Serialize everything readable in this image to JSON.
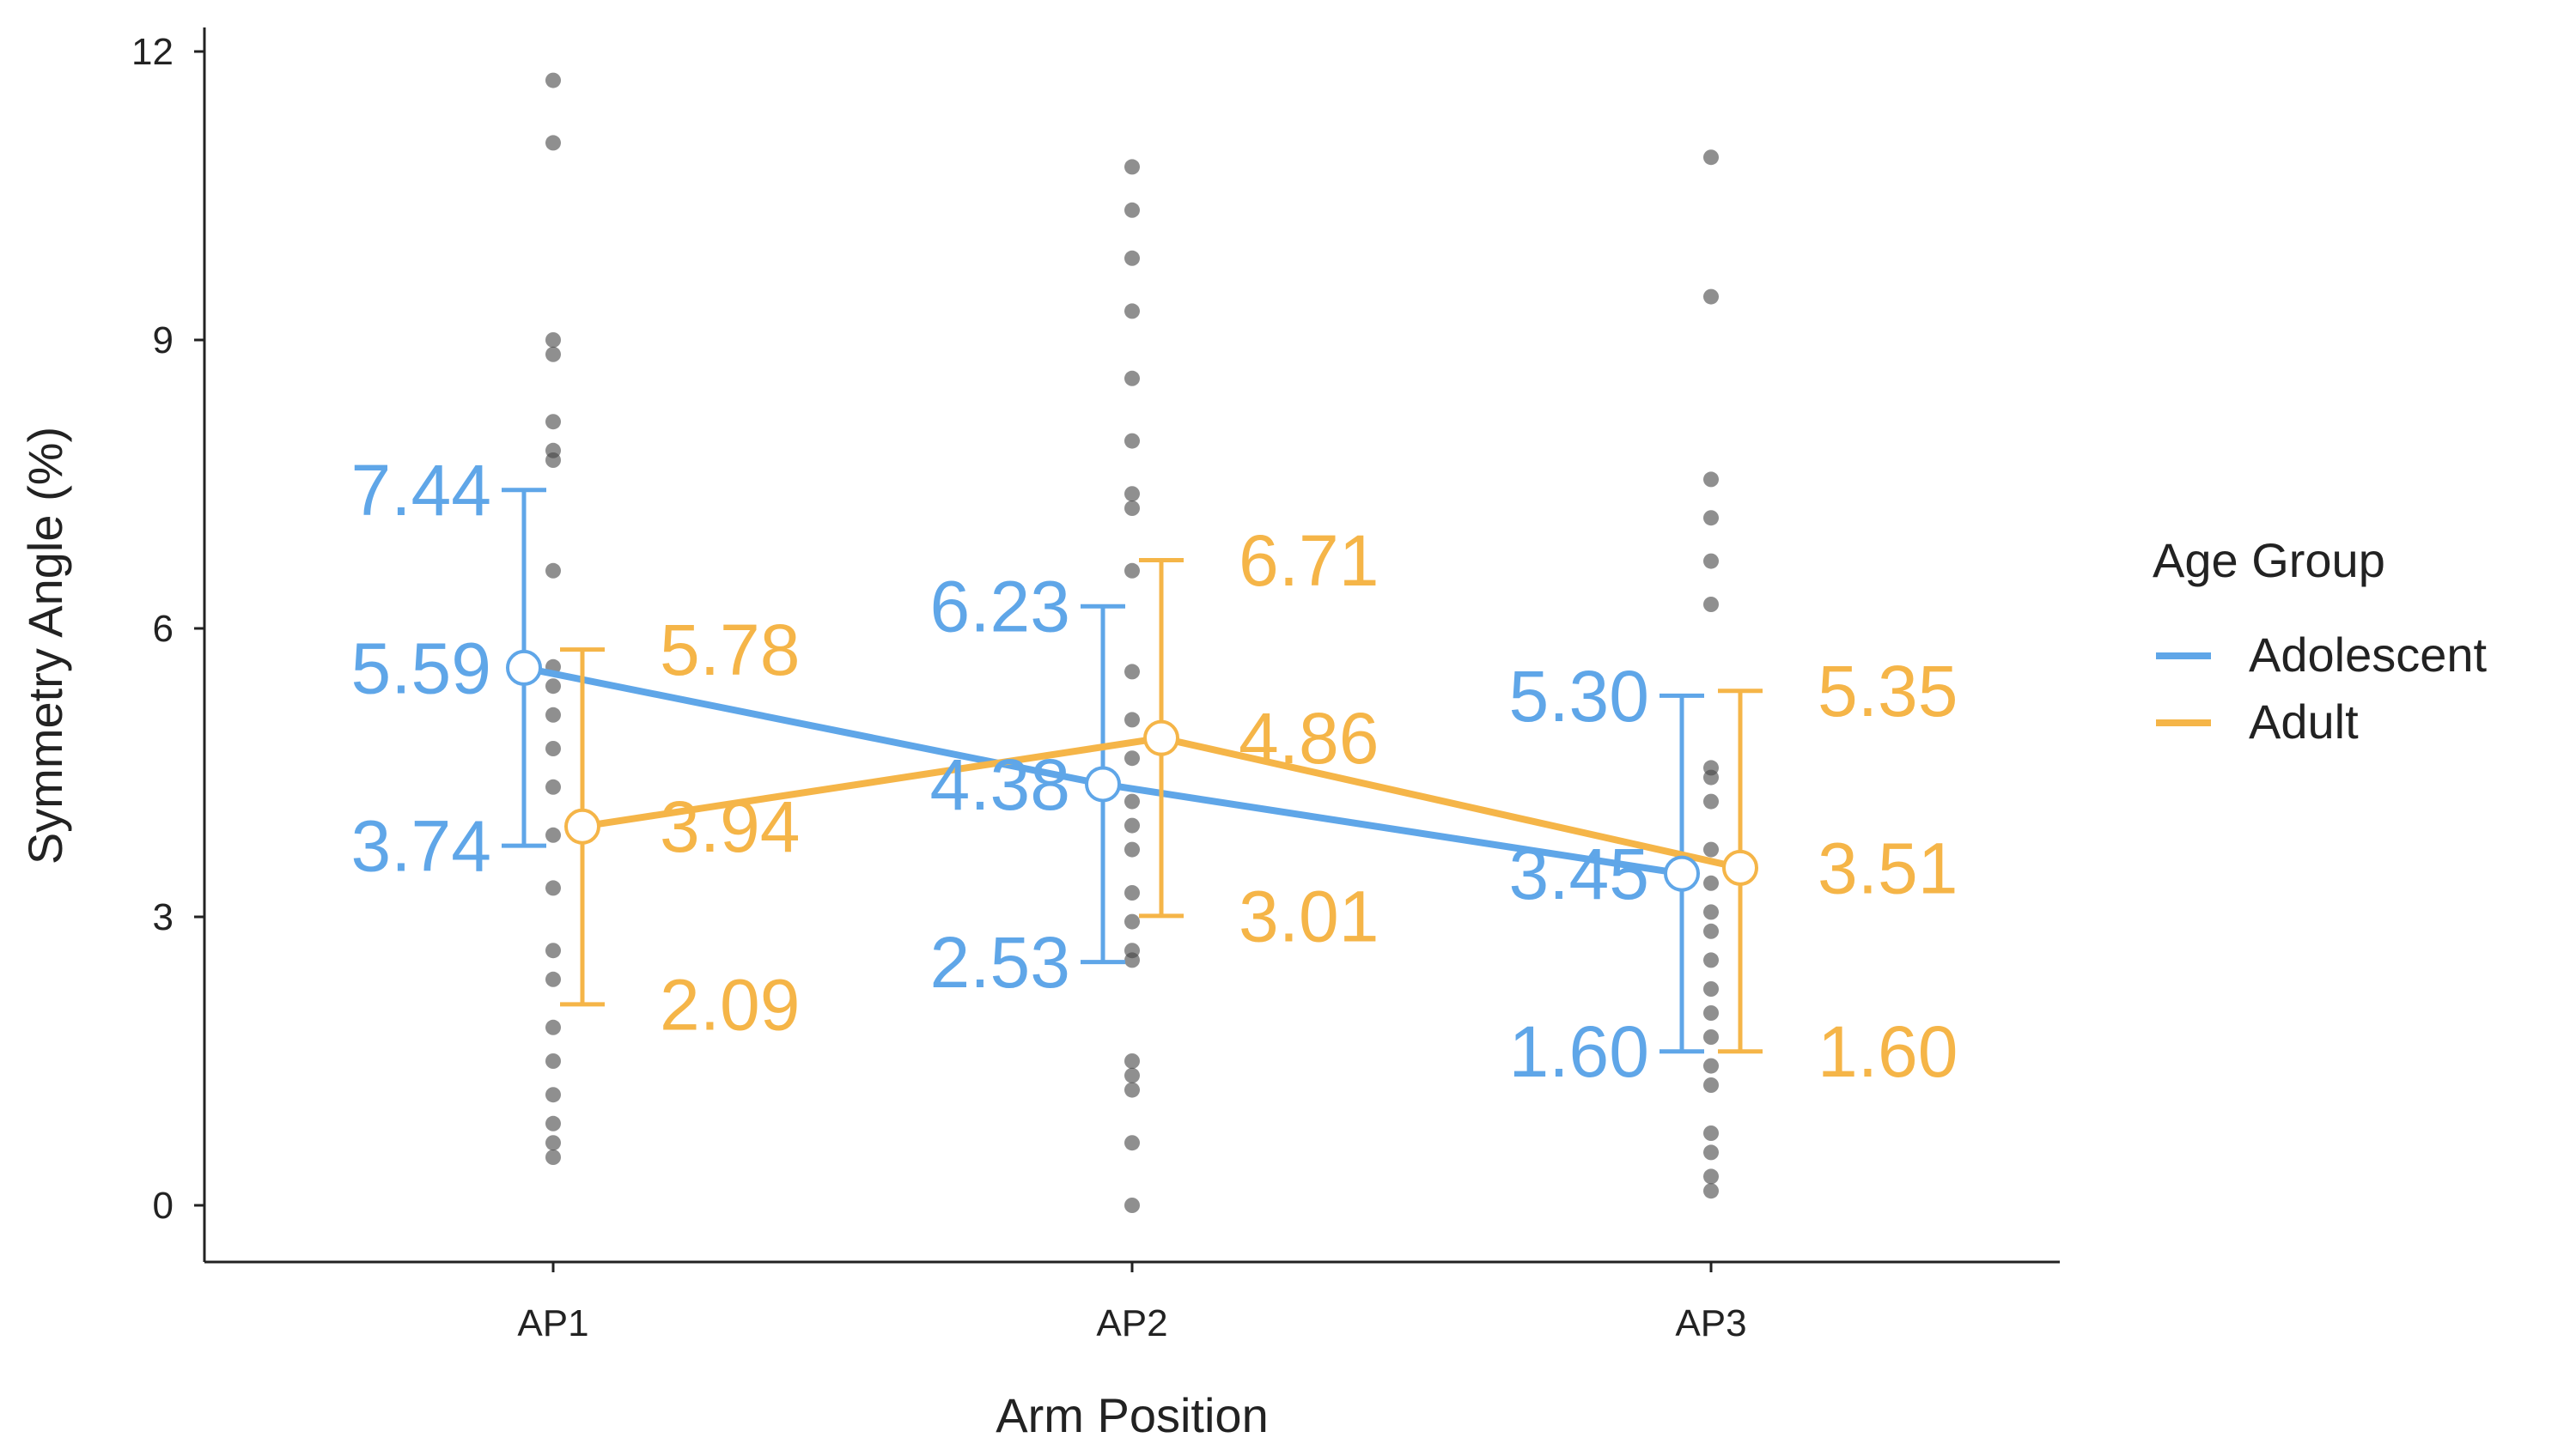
{
  "chart_data": {
    "type": "line",
    "title": "",
    "xlabel": "Arm Position",
    "ylabel": "Symmetry Angle (%)",
    "categories": [
      "AP1",
      "AP2",
      "AP3"
    ],
    "ylim": [
      0,
      12
    ],
    "yticks": [
      0,
      3,
      6,
      9,
      12
    ],
    "ytick_labels": [
      "0",
      "3",
      "6",
      "9",
      "12"
    ],
    "legend": {
      "title": "Age Group",
      "position": "right"
    },
    "series": [
      {
        "name": "Adolescent",
        "color": "#5fa6e8",
        "mean": [
          5.59,
          4.38,
          3.45
        ],
        "lower": [
          3.74,
          2.53,
          1.6
        ],
        "upper": [
          7.44,
          6.23,
          5.3
        ],
        "mean_labels": [
          "5.59",
          "4.38",
          "3.45"
        ],
        "lower_labels": [
          "3.74",
          "2.53",
          "1.60"
        ],
        "upper_labels": [
          "7.44",
          "6.23",
          "5.30"
        ]
      },
      {
        "name": "Adult",
        "color": "#f5b548",
        "mean": [
          3.94,
          4.86,
          3.51
        ],
        "lower": [
          2.09,
          3.01,
          1.6
        ],
        "upper": [
          5.78,
          6.71,
          5.35
        ],
        "mean_labels": [
          "3.94",
          "4.86",
          "3.51"
        ],
        "lower_labels": [
          "2.09",
          "3.01",
          "1.60"
        ],
        "upper_labels": [
          "5.78",
          "6.71",
          "5.35"
        ]
      }
    ],
    "individual_points": [
      [
        11.7,
        11.05,
        9.0,
        8.85,
        8.15,
        7.85,
        7.75,
        6.6,
        5.6,
        5.4,
        5.1,
        4.75,
        4.35,
        3.85,
        3.3,
        2.65,
        2.35,
        1.85,
        1.5,
        1.15,
        0.85,
        0.65,
        0.5
      ],
      [
        10.8,
        10.35,
        9.85,
        9.3,
        8.6,
        7.95,
        7.4,
        7.25,
        6.6,
        5.55,
        5.05,
        4.65,
        4.2,
        3.95,
        3.7,
        3.25,
        2.95,
        2.65,
        2.55,
        1.5,
        1.35,
        1.2,
        0.65,
        0.0
      ],
      [
        10.9,
        9.45,
        7.55,
        7.15,
        6.7,
        6.25,
        4.55,
        4.45,
        4.2,
        3.7,
        3.35,
        3.05,
        2.85,
        2.55,
        2.25,
        2.0,
        1.75,
        1.45,
        1.25,
        0.75,
        0.55,
        0.3,
        0.15
      ]
    ]
  }
}
